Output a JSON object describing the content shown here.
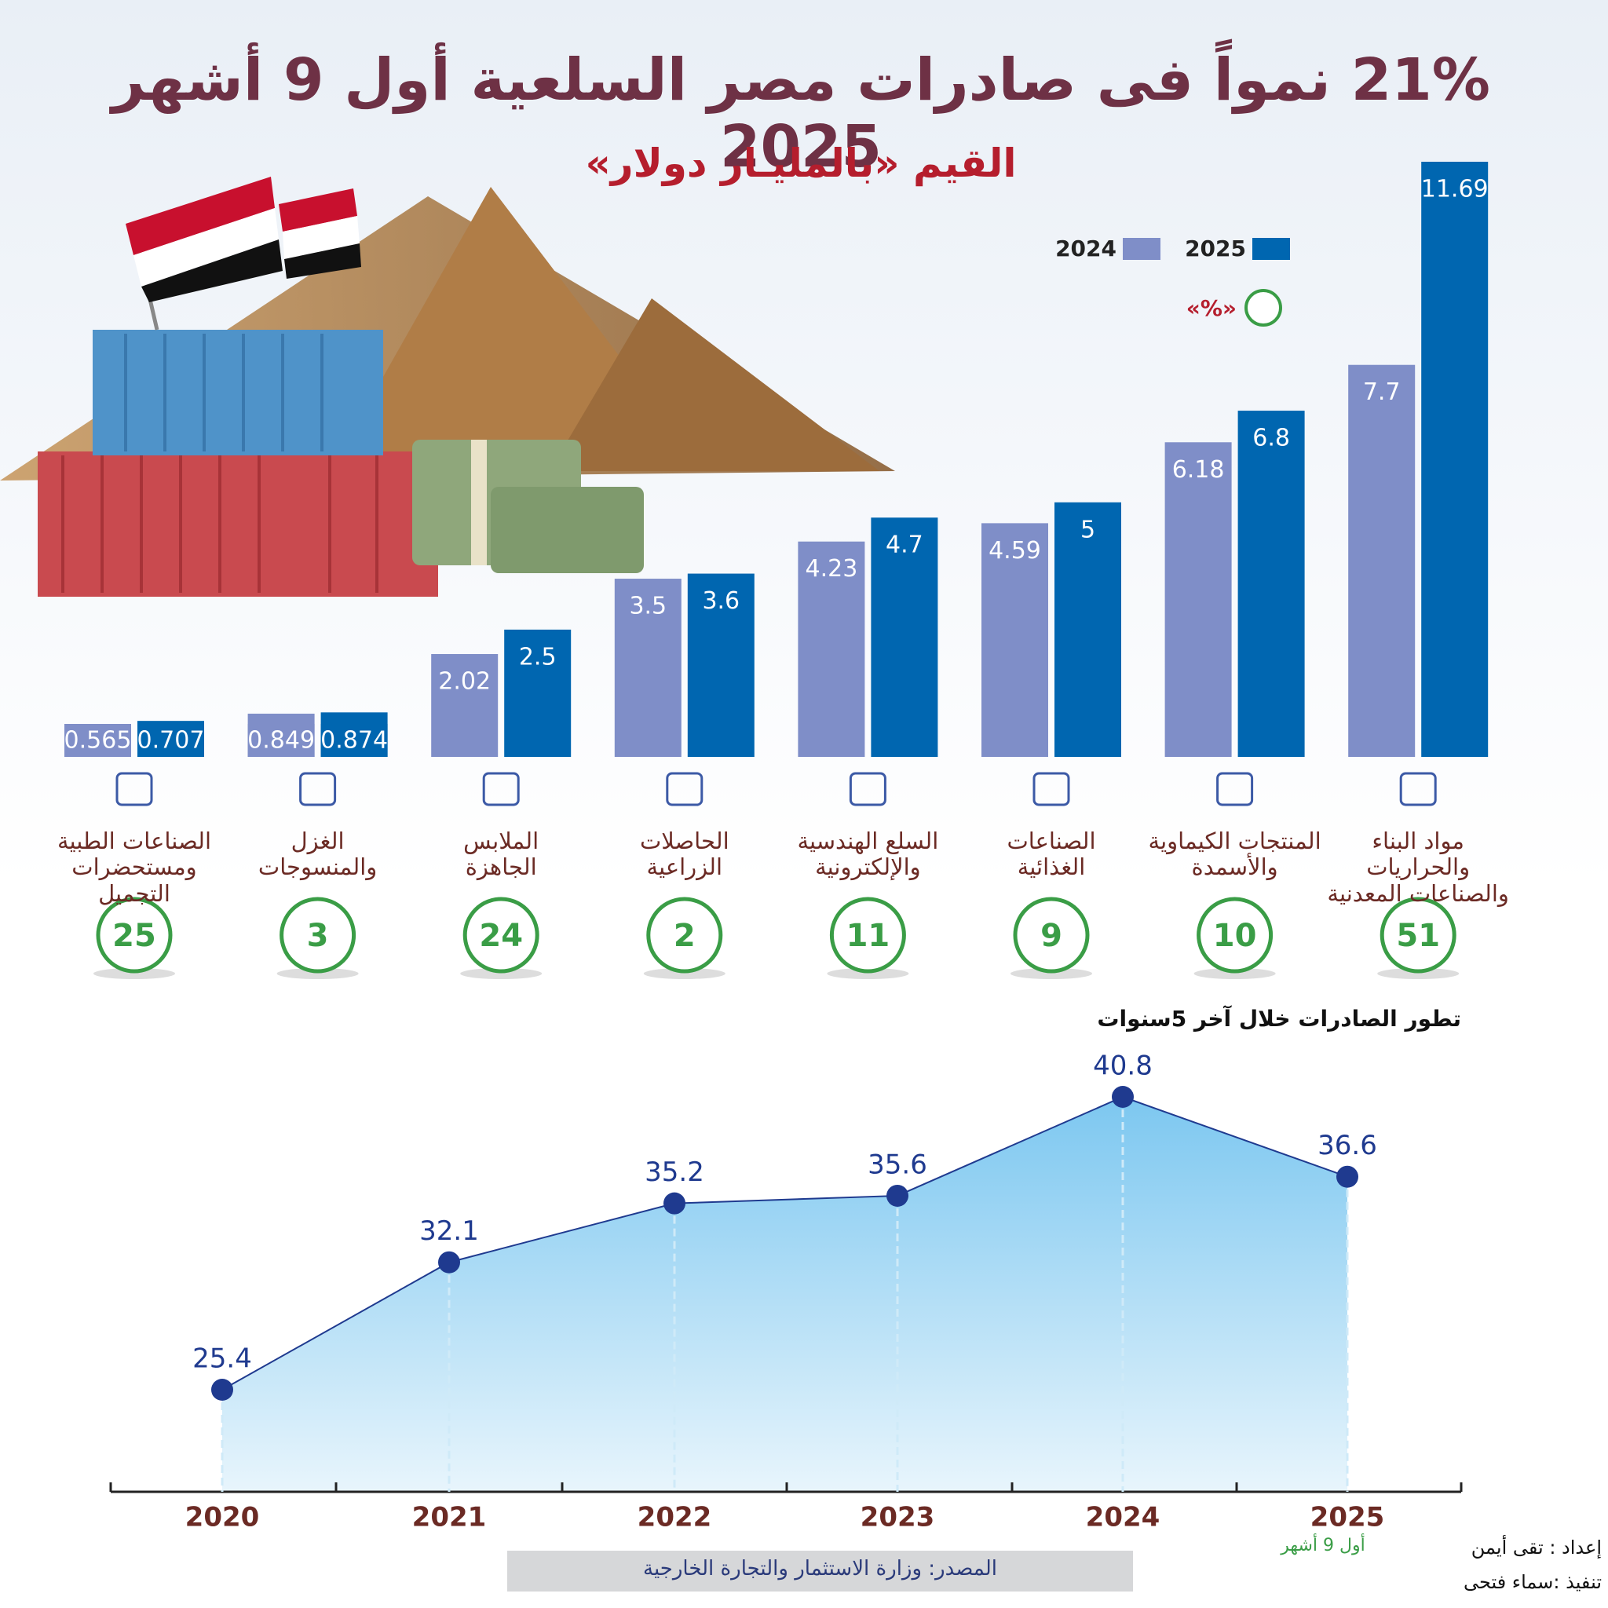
{
  "chart_data": [
    {
      "type": "bar",
      "title": "21% نمواً فى صادرات مصر السلعية أول 9 أشهر 2025",
      "subtitle": "القيم «بالمليـار دولار»",
      "categories": [
        "الصناعات الطبية\nومستحضرات التجميل",
        "الغزل\nوالمنسوجات",
        "الملابس\nالجاهزة",
        "الحاصلات\nالزراعية",
        "السلع الهندسية\nوالإلكترونية",
        "الصناعات\nالغذائية",
        "المنتجات الكيماوية\nوالأسمدة",
        "مواد البناء والحراريات\nوالصناعات المعدنية"
      ],
      "series": [
        {
          "name": "2024",
          "color": "#7f8ec8",
          "values": [
            0.565,
            0.849,
            2.02,
            3.5,
            4.23,
            4.59,
            6.18,
            7.7
          ]
        },
        {
          "name": "2025",
          "color": "#0066b0",
          "values": [
            0.707,
            0.874,
            2.5,
            3.6,
            4.7,
            5,
            6.8,
            11.69
          ]
        }
      ],
      "growth_label": "«%»",
      "growth": [
        25,
        3,
        24,
        2,
        11,
        9,
        10,
        51
      ],
      "growth_color": "#3a9d46"
    },
    {
      "type": "area",
      "title": "تطور الصادرات خلال آخر 5سنوات",
      "categories": [
        "2020",
        "2021",
        "2022",
        "2023",
        "2024",
        "2025"
      ],
      "values": [
        25.4,
        32.1,
        35.2,
        35.6,
        40.8,
        36.6
      ],
      "color": "#8fd0f3",
      "point_color": "#1f3a8f",
      "note": "أول 9 أشهر"
    }
  ],
  "footer": {
    "source": "المصدر: وزارة الاستثمار والتجارة الخارجية",
    "prepared_by": "إعداد : تقى أيمن",
    "executed_by": "تنفيذ :سماء فتحى"
  }
}
